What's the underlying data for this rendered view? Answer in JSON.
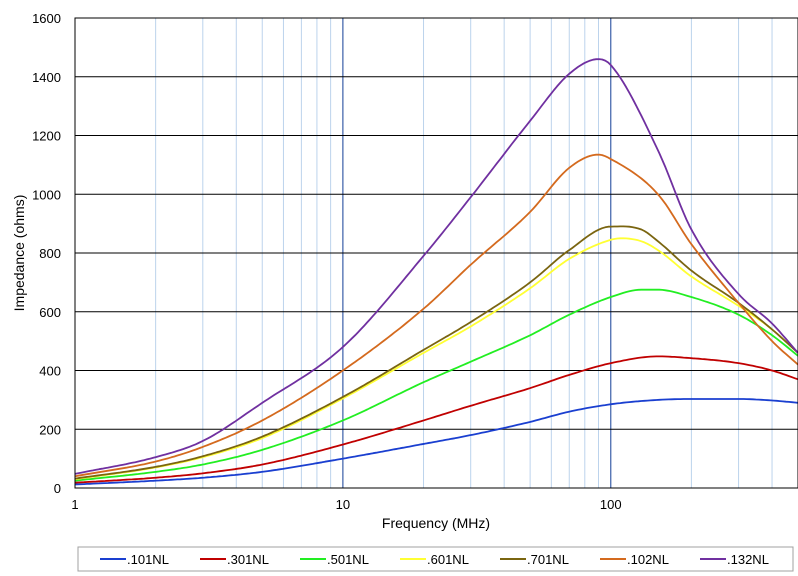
{
  "chart_data": {
    "type": "line",
    "xlabel": "Frequency (MHz)",
    "ylabel": "Impedance (ohms)",
    "x_scale": "log",
    "xlim": [
      1,
      500
    ],
    "ylim": [
      0,
      1600
    ],
    "x_ticks": [
      1,
      10,
      100
    ],
    "x_tick_labels": [
      "1",
      "10",
      "100"
    ],
    "y_ticks": [
      0,
      200,
      400,
      600,
      800,
      1000,
      1200,
      1400,
      1600
    ],
    "y_tick_labels": [
      "0",
      "200",
      "400",
      "600",
      "800",
      "1000",
      "1200",
      "1400",
      "1600"
    ],
    "grid": true,
    "legend_position": "bottom",
    "series": [
      {
        "name": ".101NL",
        "color": "#1a3fd0",
        "x": [
          1,
          2,
          3,
          5,
          10,
          20,
          30,
          50,
          70,
          100,
          150,
          200,
          300,
          400,
          500
        ],
        "y": [
          12,
          25,
          35,
          55,
          100,
          150,
          180,
          225,
          260,
          285,
          300,
          303,
          303,
          298,
          290
        ]
      },
      {
        "name": ".301NL",
        "color": "#c00000",
        "x": [
          1,
          2,
          3,
          5,
          10,
          20,
          30,
          50,
          70,
          100,
          150,
          200,
          300,
          400,
          500
        ],
        "y": [
          18,
          35,
          50,
          80,
          148,
          230,
          280,
          340,
          385,
          425,
          448,
          442,
          425,
          400,
          370
        ]
      },
      {
        "name": ".501NL",
        "color": "#22ee22",
        "x": [
          1,
          2,
          3,
          5,
          10,
          20,
          30,
          50,
          70,
          100,
          130,
          150,
          200,
          300,
          400,
          500
        ],
        "y": [
          25,
          55,
          80,
          130,
          230,
          360,
          430,
          520,
          590,
          650,
          675,
          675,
          650,
          590,
          520,
          450
        ]
      },
      {
        "name": ".601NL",
        "color": "#ffff33",
        "x": [
          1,
          2,
          3,
          5,
          10,
          20,
          30,
          50,
          70,
          100,
          110,
          130,
          150,
          200,
          300,
          400,
          500
        ],
        "y": [
          30,
          70,
          105,
          170,
          305,
          460,
          550,
          680,
          780,
          845,
          850,
          840,
          810,
          720,
          620,
          540,
          460
        ]
      },
      {
        "name": ".701NL",
        "color": "#7a6510",
        "x": [
          1,
          2,
          3,
          5,
          10,
          20,
          30,
          50,
          70,
          100,
          130,
          150,
          200,
          300,
          400,
          500
        ],
        "y": [
          32,
          72,
          108,
          175,
          310,
          470,
          565,
          700,
          810,
          890,
          880,
          840,
          740,
          630,
          540,
          460
        ]
      },
      {
        "name": ".102NL",
        "color": "#d46a1e",
        "x": [
          1,
          2,
          3,
          5,
          10,
          20,
          30,
          50,
          70,
          90,
          100,
          150,
          200,
          300,
          400,
          500
        ],
        "y": [
          40,
          90,
          140,
          230,
          400,
          610,
          760,
          940,
          1090,
          1135,
          1120,
          1000,
          830,
          630,
          500,
          420
        ]
      },
      {
        "name": ".132NL",
        "color": "#7030a0",
        "x": [
          1,
          2,
          3,
          5,
          10,
          20,
          30,
          50,
          70,
          90,
          100,
          150,
          200,
          300,
          400,
          500
        ],
        "y": [
          48,
          105,
          160,
          290,
          480,
          790,
          990,
          1250,
          1410,
          1460,
          1440,
          1150,
          880,
          660,
          560,
          460
        ]
      }
    ]
  }
}
